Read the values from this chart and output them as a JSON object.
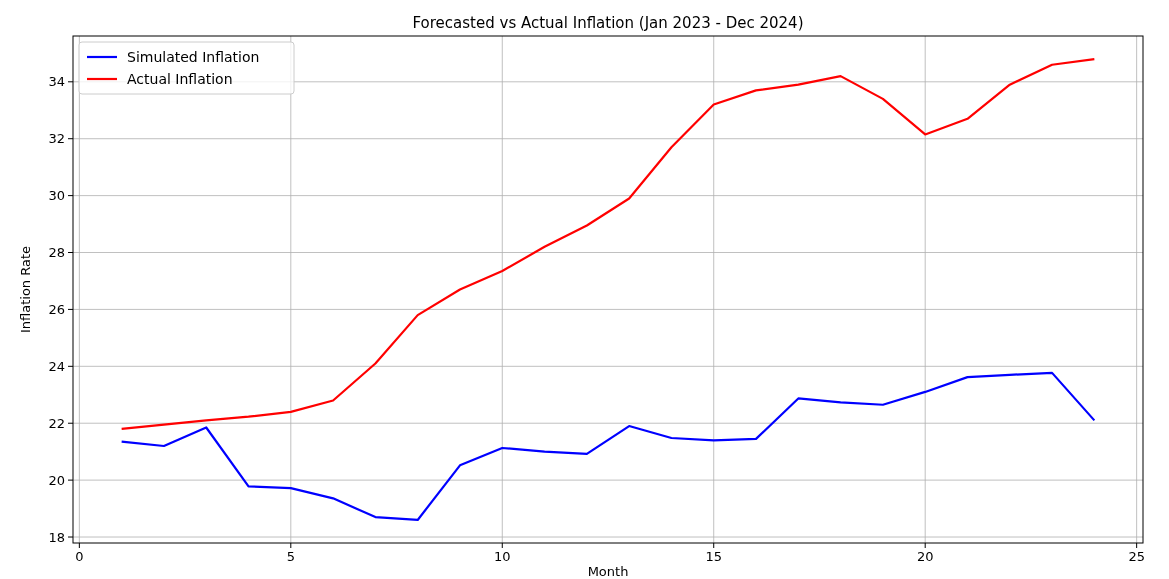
{
  "chart_data": {
    "type": "line",
    "title": "Forecasted vs Actual Inflation (Jan 2023 - Dec 2024)",
    "xlabel": "Month",
    "ylabel": "Inflation Rate",
    "x": [
      1,
      2,
      3,
      4,
      5,
      6,
      7,
      8,
      9,
      10,
      11,
      12,
      13,
      14,
      15,
      16,
      17,
      18,
      19,
      20,
      21,
      22,
      23,
      24
    ],
    "series": [
      {
        "name": "Simulated Inflation",
        "color": "#0000ff",
        "values": [
          21.35,
          21.2,
          21.85,
          19.78,
          19.72,
          19.36,
          18.7,
          18.6,
          20.52,
          21.13,
          21.0,
          20.92,
          21.9,
          21.48,
          21.4,
          21.45,
          22.87,
          22.73,
          22.65,
          23.1,
          23.62,
          23.7,
          23.77,
          22.1
        ]
      },
      {
        "name": "Actual Inflation",
        "color": "#ff0000",
        "values": [
          21.8,
          21.95,
          22.1,
          22.23,
          22.4,
          22.8,
          24.1,
          25.8,
          26.7,
          27.35,
          28.2,
          28.95,
          29.9,
          31.7,
          33.2,
          33.7,
          33.9,
          34.2,
          33.4,
          32.15,
          32.7,
          33.9,
          34.6,
          34.8
        ]
      }
    ],
    "xlim": [
      -0.15,
      25.15
    ],
    "xticks": [
      0,
      5,
      10,
      15,
      20,
      25
    ],
    "ylim": [
      17.79,
      35.61
    ],
    "yticks": [
      18,
      20,
      22,
      24,
      26,
      28,
      30,
      32,
      34
    ],
    "grid": true,
    "legend": "top left"
  }
}
